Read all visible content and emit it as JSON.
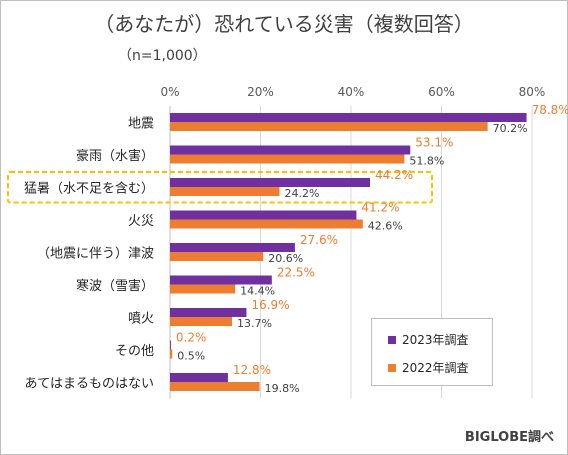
{
  "chart_data": {
    "type": "bar",
    "orientation": "horizontal",
    "title": "（あなたが）恐れている災害（複数回答）",
    "subtitle": "（n=1,000）",
    "source": "BIGLOBE調べ",
    "categories": [
      "地震",
      "豪雨（水害）",
      "猛暑（水不足を含む）",
      "火災",
      "（地震に伴う）津波",
      "寒波（雪害）",
      "噴火",
      "その他",
      "あてはまるものはない"
    ],
    "highlighted_category": "猛暑（水不足を含む）",
    "series": [
      {
        "name": "2023年調査",
        "color": "#7030a0",
        "values": [
          78.8,
          53.1,
          44.2,
          41.2,
          27.6,
          22.5,
          16.9,
          0.2,
          12.8
        ]
      },
      {
        "name": "2022年調査",
        "color": "#ed7d31",
        "values": [
          70.2,
          51.8,
          24.2,
          42.6,
          20.6,
          14.4,
          13.7,
          0.5,
          19.8
        ]
      }
    ],
    "xticks": [
      "0%",
      "20%",
      "40%",
      "60%",
      "80%"
    ],
    "xlim": [
      0,
      80
    ],
    "grid": true,
    "legend_position": "bottom-right"
  }
}
